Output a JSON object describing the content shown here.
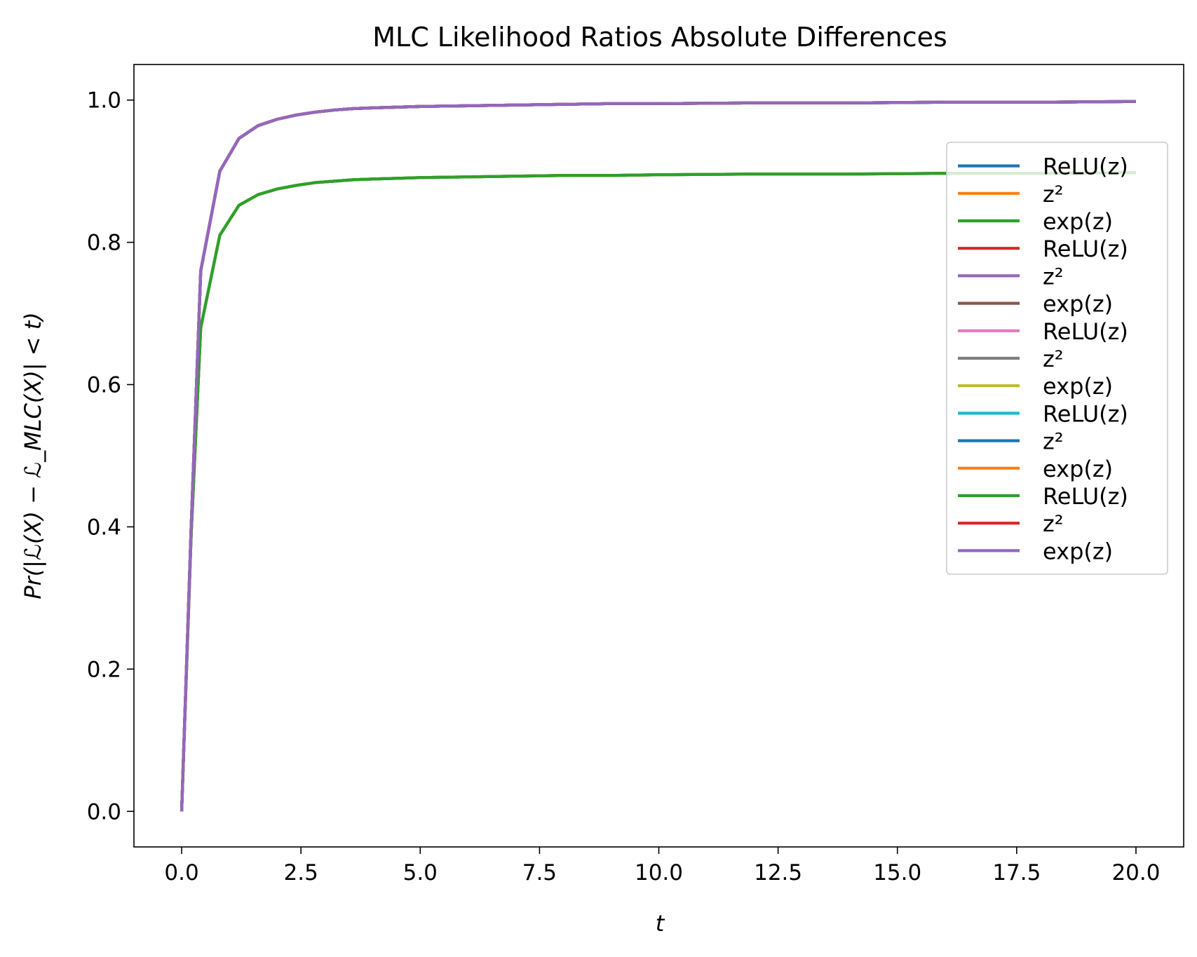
{
  "chart_data": {
    "type": "line",
    "title": "MLC Likelihood Ratios Absolute Differences",
    "xlabel": "t",
    "ylabel": "Pr(|ℒ(X) − ℒ_MLC(X)| < t)",
    "xlim": [
      -1.0,
      21.0
    ],
    "ylim": [
      -0.05,
      1.05
    ],
    "xticks": [
      0.0,
      2.5,
      5.0,
      7.5,
      10.0,
      12.5,
      15.0,
      17.5,
      20.0
    ],
    "xtick_labels": [
      "0.0",
      "2.5",
      "5.0",
      "7.5",
      "10.0",
      "12.5",
      "15.0",
      "17.5",
      "20.0"
    ],
    "yticks": [
      0.0,
      0.2,
      0.4,
      0.6,
      0.8,
      1.0
    ],
    "ytick_labels": [
      "0.0",
      "0.2",
      "0.4",
      "0.6",
      "0.8",
      "1.0"
    ],
    "grid": false,
    "legend_position": "right",
    "x": [
      0,
      0.2,
      0.4,
      0.8,
      1.2,
      1.6,
      2.0,
      2.4,
      2.8,
      3.2,
      3.6,
      4.0,
      5.0,
      6.0,
      7.0,
      8.0,
      9.0,
      10.0,
      12.0,
      14.0,
      16.0,
      18.0,
      20.0
    ],
    "series": [
      {
        "name": "ReLU(z)",
        "color": "#1f77b4",
        "values": [
          0,
          0.39,
          0.68,
          0.81,
          0.852,
          0.867,
          0.875,
          0.88,
          0.884,
          0.886,
          0.888,
          0.889,
          0.891,
          0.892,
          0.893,
          0.894,
          0.894,
          0.895,
          0.896,
          0.896,
          0.897,
          0.897,
          0.898
        ]
      },
      {
        "name": "z²",
        "color": "#ff7f0e",
        "values": [
          0,
          0.4,
          0.76,
          0.9,
          0.946,
          0.964,
          0.973,
          0.979,
          0.983,
          0.986,
          0.988,
          0.989,
          0.991,
          0.992,
          0.993,
          0.994,
          0.995,
          0.995,
          0.996,
          0.996,
          0.997,
          0.997,
          0.998
        ]
      },
      {
        "name": "exp(z)",
        "color": "#2ca02c",
        "values": [
          0,
          0.39,
          0.68,
          0.81,
          0.852,
          0.867,
          0.875,
          0.88,
          0.884,
          0.886,
          0.888,
          0.889,
          0.891,
          0.892,
          0.893,
          0.894,
          0.894,
          0.895,
          0.896,
          0.896,
          0.897,
          0.897,
          0.898
        ]
      },
      {
        "name": "ReLU(z)",
        "color": "#d62728",
        "values": [
          0,
          0.4,
          0.76,
          0.9,
          0.946,
          0.964,
          0.973,
          0.979,
          0.983,
          0.986,
          0.988,
          0.989,
          0.991,
          0.992,
          0.993,
          0.994,
          0.995,
          0.995,
          0.996,
          0.996,
          0.997,
          0.997,
          0.998
        ]
      },
      {
        "name": "z²",
        "color": "#9467bd",
        "values": [
          0,
          0.4,
          0.76,
          0.9,
          0.946,
          0.964,
          0.973,
          0.979,
          0.983,
          0.986,
          0.988,
          0.989,
          0.991,
          0.992,
          0.993,
          0.994,
          0.995,
          0.995,
          0.996,
          0.996,
          0.997,
          0.997,
          0.998
        ]
      },
      {
        "name": "exp(z)",
        "color": "#8c564b",
        "values": [
          0,
          0.4,
          0.76,
          0.9,
          0.946,
          0.964,
          0.973,
          0.979,
          0.983,
          0.986,
          0.988,
          0.989,
          0.991,
          0.992,
          0.993,
          0.994,
          0.995,
          0.995,
          0.996,
          0.996,
          0.997,
          0.997,
          0.998
        ]
      },
      {
        "name": "ReLU(z)",
        "color": "#e377c2",
        "values": [
          0,
          0.4,
          0.76,
          0.9,
          0.946,
          0.964,
          0.973,
          0.979,
          0.983,
          0.986,
          0.988,
          0.989,
          0.991,
          0.992,
          0.993,
          0.994,
          0.995,
          0.995,
          0.996,
          0.996,
          0.997,
          0.997,
          0.998
        ]
      },
      {
        "name": "z²",
        "color": "#7f7f7f",
        "values": [
          0,
          0.4,
          0.76,
          0.9,
          0.946,
          0.964,
          0.973,
          0.979,
          0.983,
          0.986,
          0.988,
          0.989,
          0.991,
          0.992,
          0.993,
          0.994,
          0.995,
          0.995,
          0.996,
          0.996,
          0.997,
          0.997,
          0.998
        ]
      },
      {
        "name": "exp(z)",
        "color": "#bcbd22",
        "values": [
          0,
          0.4,
          0.76,
          0.9,
          0.946,
          0.964,
          0.973,
          0.979,
          0.983,
          0.986,
          0.988,
          0.989,
          0.991,
          0.992,
          0.993,
          0.994,
          0.995,
          0.995,
          0.996,
          0.996,
          0.997,
          0.997,
          0.998
        ]
      },
      {
        "name": "ReLU(z)",
        "color": "#17becf",
        "values": [
          0,
          0.4,
          0.76,
          0.9,
          0.946,
          0.964,
          0.973,
          0.979,
          0.983,
          0.986,
          0.988,
          0.989,
          0.991,
          0.992,
          0.993,
          0.994,
          0.995,
          0.995,
          0.996,
          0.996,
          0.997,
          0.997,
          0.998
        ]
      },
      {
        "name": "z²",
        "color": "#1f77b4",
        "values": [
          0,
          0.4,
          0.76,
          0.9,
          0.946,
          0.964,
          0.973,
          0.979,
          0.983,
          0.986,
          0.988,
          0.989,
          0.991,
          0.992,
          0.993,
          0.994,
          0.995,
          0.995,
          0.996,
          0.996,
          0.997,
          0.997,
          0.998
        ]
      },
      {
        "name": "exp(z)",
        "color": "#ff7f0e",
        "values": [
          0,
          0.39,
          0.68,
          0.81,
          0.852,
          0.867,
          0.875,
          0.88,
          0.884,
          0.886,
          0.888,
          0.889,
          0.891,
          0.892,
          0.893,
          0.894,
          0.894,
          0.895,
          0.896,
          0.896,
          0.897,
          0.897,
          0.898
        ]
      },
      {
        "name": "ReLU(z)",
        "color": "#2ca02c",
        "values": [
          0,
          0.39,
          0.68,
          0.81,
          0.852,
          0.867,
          0.875,
          0.88,
          0.884,
          0.886,
          0.888,
          0.889,
          0.891,
          0.892,
          0.893,
          0.894,
          0.894,
          0.895,
          0.896,
          0.896,
          0.897,
          0.897,
          0.898
        ]
      },
      {
        "name": "z²",
        "color": "#d62728",
        "values": [
          0,
          0.4,
          0.76,
          0.9,
          0.946,
          0.964,
          0.973,
          0.979,
          0.983,
          0.986,
          0.988,
          0.989,
          0.991,
          0.992,
          0.993,
          0.994,
          0.995,
          0.995,
          0.996,
          0.996,
          0.997,
          0.997,
          0.998
        ]
      },
      {
        "name": "exp(z)",
        "color": "#9467bd",
        "values": [
          0,
          0.4,
          0.76,
          0.9,
          0.946,
          0.964,
          0.973,
          0.979,
          0.983,
          0.986,
          0.988,
          0.989,
          0.991,
          0.992,
          0.993,
          0.994,
          0.995,
          0.995,
          0.996,
          0.996,
          0.997,
          0.997,
          0.998
        ]
      }
    ]
  }
}
